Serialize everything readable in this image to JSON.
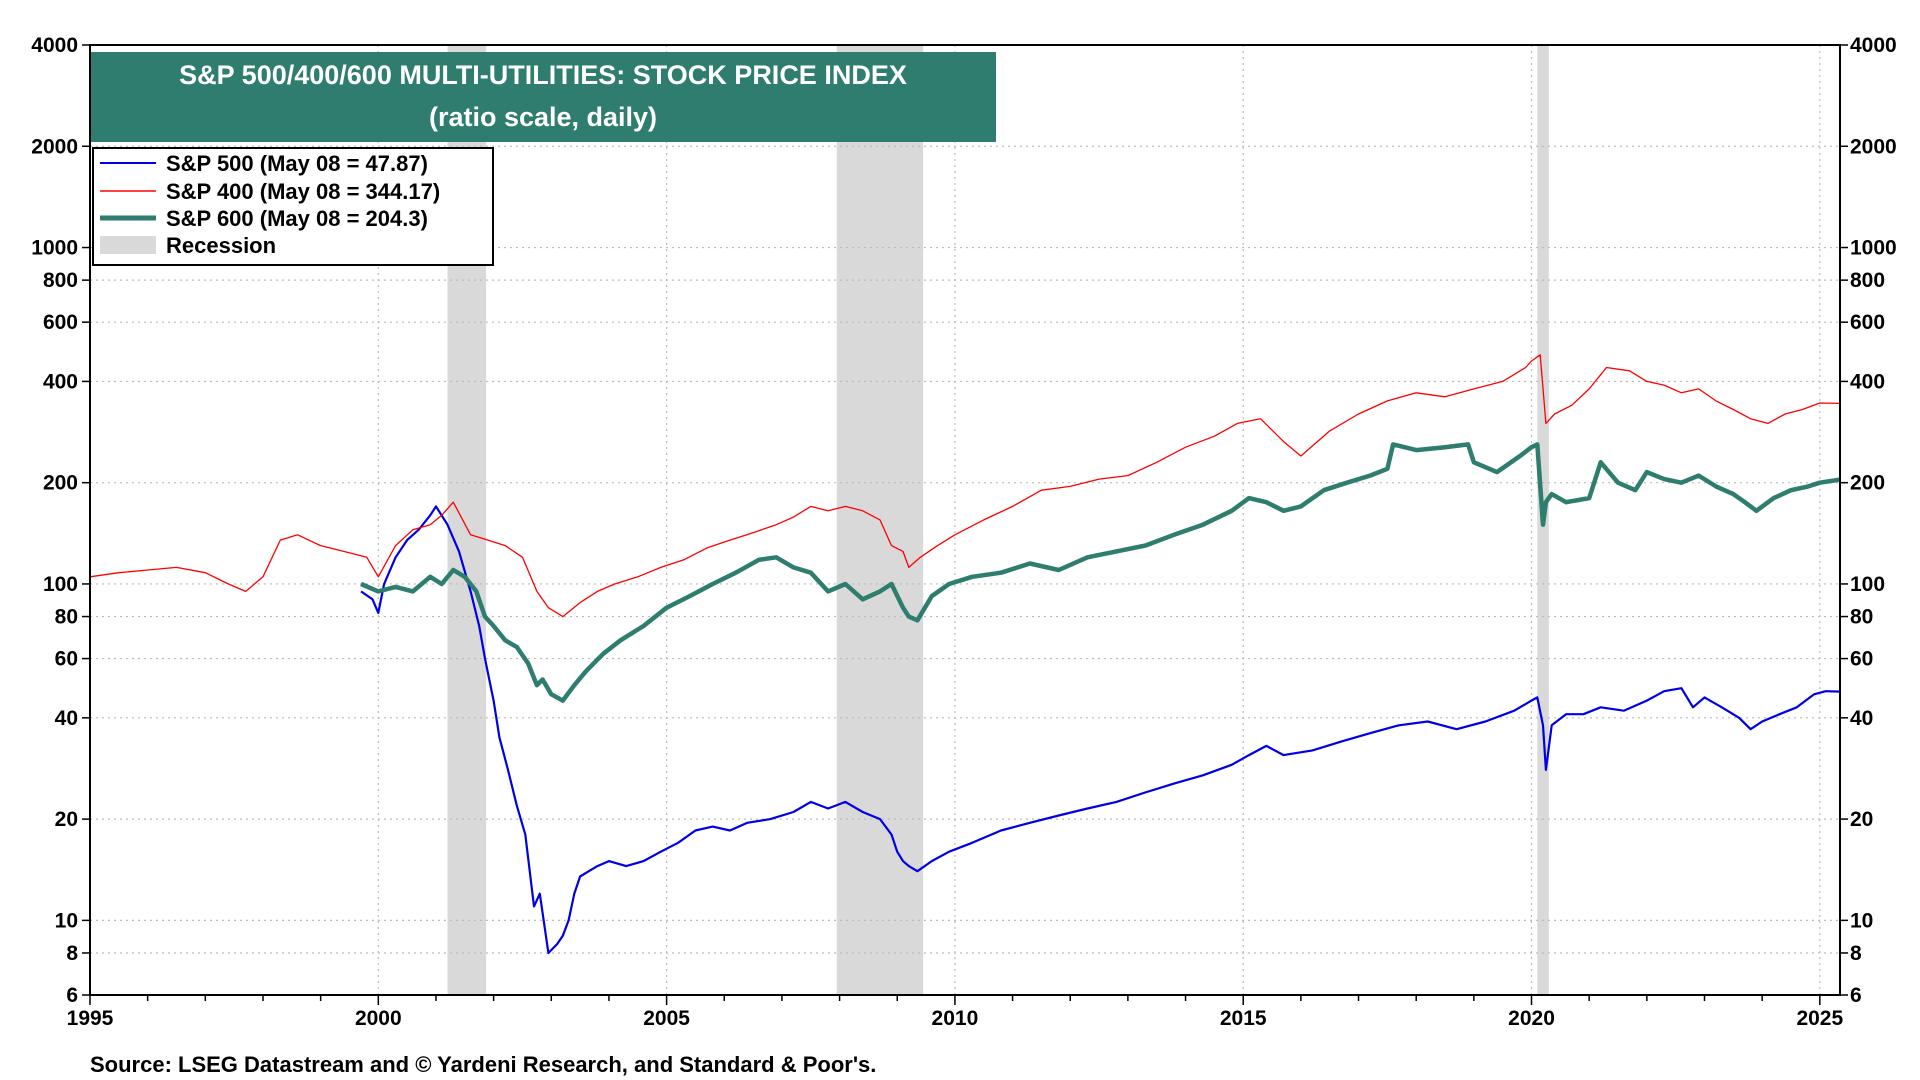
{
  "chart_data": {
    "type": "line",
    "title": "S&P 500/400/600 MULTI-UTILITIES: STOCK PRICE INDEX",
    "subtitle": "(ratio scale, daily)",
    "y_scale": "log",
    "ylim": [
      6,
      4000
    ],
    "xlim": [
      1995,
      2025.35
    ],
    "y_ticks": [
      {
        "value": 6,
        "label": "6"
      },
      {
        "value": 8,
        "label": "8"
      },
      {
        "value": 10,
        "label": "10"
      },
      {
        "value": 20,
        "label": "20"
      },
      {
        "value": 40,
        "label": "40"
      },
      {
        "value": 60,
        "label": "60"
      },
      {
        "value": 80,
        "label": "80"
      },
      {
        "value": 100,
        "label": "100"
      },
      {
        "value": 200,
        "label": "200"
      },
      {
        "value": 400,
        "label": "400"
      },
      {
        "value": 600,
        "label": "600"
      },
      {
        "value": 800,
        "label": "800"
      },
      {
        "value": 1000,
        "label": "1000"
      },
      {
        "value": 2000,
        "label": "2000"
      },
      {
        "value": 4000,
        "label": "4000"
      }
    ],
    "x_ticks": [
      {
        "value": 1995,
        "label": "1995"
      },
      {
        "value": 2000,
        "label": "2000"
      },
      {
        "value": 2005,
        "label": "2005"
      },
      {
        "value": 2010,
        "label": "2010"
      },
      {
        "value": 2015,
        "label": "2015"
      },
      {
        "value": 2020,
        "label": "2020"
      },
      {
        "value": 2025,
        "label": "2025"
      }
    ],
    "grid": true,
    "legend_position": "top-left",
    "recessions": [
      {
        "start": 2001.2,
        "end": 2001.87
      },
      {
        "start": 2007.95,
        "end": 2009.45
      },
      {
        "start": 2020.1,
        "end": 2020.3
      }
    ],
    "series": [
      {
        "name": "S&P 500 (May 08 = 47.87)",
        "color": "#0000e6",
        "x": [
          1999.7,
          1999.9,
          2000.0,
          2000.1,
          2000.3,
          2000.5,
          2000.7,
          2000.9,
          2001.0,
          2001.2,
          2001.4,
          2001.6,
          2001.75,
          2001.85,
          2002.0,
          2002.1,
          2002.25,
          2002.4,
          2002.55,
          2002.7,
          2002.8,
          2002.95,
          2003.1,
          2003.2,
          2003.3,
          2003.4,
          2003.5,
          2003.65,
          2003.8,
          2004.0,
          2004.3,
          2004.6,
          2004.9,
          2005.2,
          2005.5,
          2005.8,
          2006.1,
          2006.4,
          2006.8,
          2007.2,
          2007.5,
          2007.8,
          2008.1,
          2008.4,
          2008.7,
          2008.9,
          2009.0,
          2009.1,
          2009.2,
          2009.35,
          2009.6,
          2009.9,
          2010.3,
          2010.8,
          2011.3,
          2011.8,
          2012.3,
          2012.8,
          2013.3,
          2013.8,
          2014.3,
          2014.8,
          2015.1,
          2015.4,
          2015.7,
          2016.2,
          2016.7,
          2017.2,
          2017.7,
          2018.2,
          2018.7,
          2019.2,
          2019.7,
          2020.0,
          2020.1,
          2020.2,
          2020.25,
          2020.35,
          2020.6,
          2020.9,
          2021.2,
          2021.6,
          2022.0,
          2022.3,
          2022.6,
          2022.8,
          2023.0,
          2023.3,
          2023.6,
          2023.8,
          2024.0,
          2024.3,
          2024.6,
          2024.9,
          2025.1,
          2025.35
        ],
        "y": [
          95,
          90,
          82,
          100,
          120,
          135,
          145,
          160,
          170,
          150,
          125,
          95,
          75,
          60,
          45,
          35,
          28,
          22,
          18,
          11,
          12,
          8,
          8.5,
          9,
          10,
          12,
          13.5,
          14,
          14.5,
          15,
          14.5,
          15,
          16,
          17,
          18.5,
          19,
          18.5,
          19.5,
          20,
          21,
          22.5,
          21.5,
          22.5,
          21,
          20,
          18,
          16,
          15,
          14.5,
          14,
          15,
          16,
          17,
          18.5,
          19.5,
          20.5,
          21.5,
          22.5,
          24,
          25.5,
          27,
          29,
          31,
          33,
          31,
          32,
          34,
          36,
          38,
          39,
          37,
          39,
          42,
          45,
          46,
          38,
          28,
          38,
          41,
          41,
          43,
          42,
          45,
          48,
          49,
          43,
          46,
          43,
          40,
          37,
          39,
          41,
          43,
          47,
          48,
          47.87
        ]
      },
      {
        "name": "S&P 400 (May 08 = 344.17)",
        "color": "#ff0000",
        "x": [
          1995.0,
          1995.5,
          1996.0,
          1996.5,
          1997.0,
          1997.4,
          1997.7,
          1998.0,
          1998.3,
          1998.6,
          1999.0,
          1999.4,
          1999.8,
          2000.0,
          2000.3,
          2000.6,
          2000.9,
          2001.1,
          2001.3,
          2001.6,
          2001.9,
          2002.2,
          2002.5,
          2002.75,
          2002.95,
          2003.2,
          2003.5,
          2003.8,
          2004.1,
          2004.5,
          2004.9,
          2005.3,
          2005.7,
          2006.1,
          2006.5,
          2006.9,
          2007.2,
          2007.5,
          2007.8,
          2008.1,
          2008.4,
          2008.7,
          2008.9,
          2009.1,
          2009.2,
          2009.4,
          2009.7,
          2010.0,
          2010.5,
          2011.0,
          2011.5,
          2012.0,
          2012.5,
          2013.0,
          2013.5,
          2014.0,
          2014.5,
          2014.9,
          2015.3,
          2015.7,
          2016.0,
          2016.5,
          2017.0,
          2017.5,
          2018.0,
          2018.5,
          2019.0,
          2019.5,
          2019.9,
          2020.0,
          2020.15,
          2020.25,
          2020.4,
          2020.7,
          2021.0,
          2021.3,
          2021.7,
          2022.0,
          2022.3,
          2022.6,
          2022.9,
          2023.2,
          2023.5,
          2023.8,
          2024.1,
          2024.4,
          2024.7,
          2025.0,
          2025.35
        ],
        "y": [
          105,
          108,
          110,
          112,
          108,
          100,
          95,
          105,
          135,
          140,
          130,
          125,
          120,
          105,
          130,
          145,
          150,
          160,
          175,
          140,
          135,
          130,
          120,
          95,
          85,
          80,
          88,
          95,
          100,
          105,
          112,
          118,
          128,
          135,
          142,
          150,
          158,
          170,
          165,
          170,
          165,
          155,
          130,
          125,
          112,
          120,
          130,
          140,
          155,
          170,
          190,
          195,
          205,
          210,
          230,
          255,
          275,
          300,
          310,
          265,
          240,
          285,
          320,
          350,
          370,
          360,
          380,
          400,
          440,
          460,
          480,
          300,
          320,
          340,
          380,
          440,
          430,
          400,
          390,
          370,
          380,
          350,
          330,
          310,
          300,
          320,
          330,
          345,
          344.17
        ]
      },
      {
        "name": "S&P 600 (May 08 = 204.3)",
        "color": "#2e7d6e",
        "x": [
          1999.7,
          2000.0,
          2000.3,
          2000.6,
          2000.9,
          2001.1,
          2001.3,
          2001.5,
          2001.7,
          2001.85,
          2002.0,
          2002.2,
          2002.4,
          2002.6,
          2002.75,
          2002.85,
          2003.0,
          2003.2,
          2003.4,
          2003.6,
          2003.9,
          2004.2,
          2004.6,
          2005.0,
          2005.4,
          2005.8,
          2006.2,
          2006.6,
          2006.9,
          2007.2,
          2007.5,
          2007.8,
          2008.1,
          2008.4,
          2008.7,
          2008.9,
          2009.1,
          2009.2,
          2009.35,
          2009.6,
          2009.9,
          2010.3,
          2010.8,
          2011.3,
          2011.8,
          2012.3,
          2012.8,
          2013.3,
          2013.8,
          2014.3,
          2014.8,
          2015.1,
          2015.4,
          2015.7,
          2016.0,
          2016.4,
          2016.8,
          2017.2,
          2017.5,
          2017.6,
          2018.0,
          2018.5,
          2018.9,
          2019.0,
          2019.4,
          2019.8,
          2020.0,
          2020.1,
          2020.2,
          2020.25,
          2020.35,
          2020.6,
          2021.0,
          2021.2,
          2021.5,
          2021.8,
          2022.0,
          2022.3,
          2022.6,
          2022.9,
          2023.2,
          2023.5,
          2023.7,
          2023.9,
          2024.2,
          2024.5,
          2024.8,
          2025.0,
          2025.35
        ],
        "y": [
          100,
          95,
          98,
          95,
          105,
          100,
          110,
          105,
          95,
          80,
          75,
          68,
          65,
          58,
          50,
          52,
          47,
          45,
          50,
          55,
          62,
          68,
          75,
          85,
          92,
          100,
          108,
          118,
          120,
          112,
          108,
          95,
          100,
          90,
          95,
          100,
          85,
          80,
          78,
          92,
          100,
          105,
          108,
          115,
          110,
          120,
          125,
          130,
          140,
          150,
          165,
          180,
          175,
          165,
          170,
          190,
          200,
          210,
          220,
          260,
          250,
          255,
          260,
          230,
          215,
          240,
          255,
          260,
          150,
          175,
          185,
          175,
          180,
          230,
          200,
          190,
          215,
          205,
          200,
          210,
          195,
          185,
          175,
          165,
          180,
          190,
          195,
          200,
          204.3
        ]
      }
    ],
    "legend_recession_label": "Recession",
    "source": "Source: LSEG Datastream and © Yardeni Research, and Standard & Poor's."
  },
  "colors": {
    "title_bg": "#2e7d6e",
    "recession": "#d9d9d9",
    "grid": "#bbbbbb"
  }
}
